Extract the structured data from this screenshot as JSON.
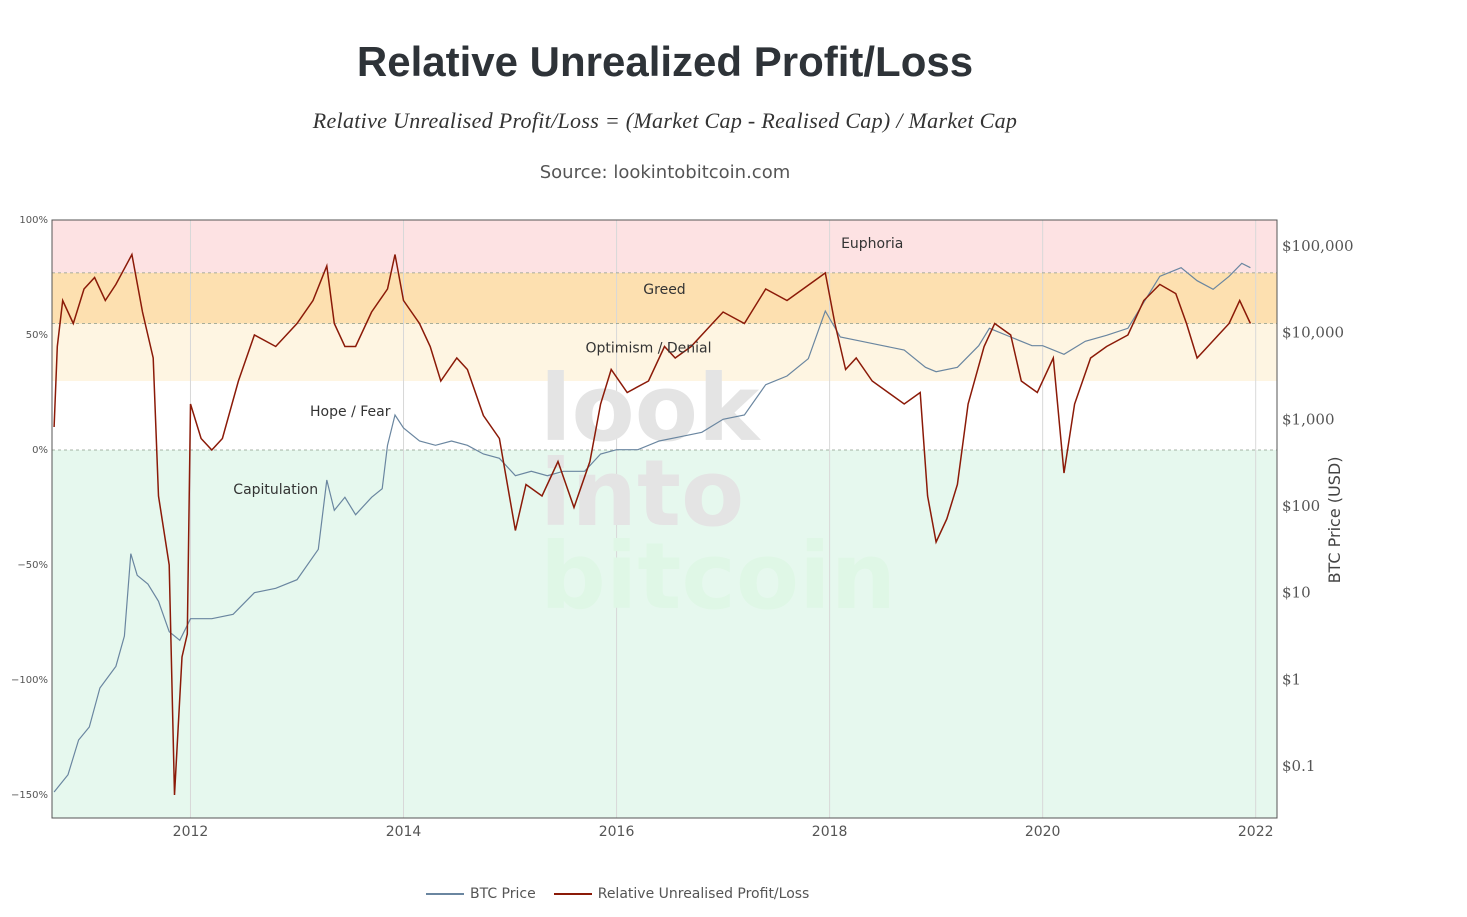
{
  "colors": {
    "btc_line": "#6a86a0",
    "rupl_line": "#8b1a08",
    "euphoria": "#fde2e3",
    "greed": "#fde0b0",
    "optimism": "#fef5e2",
    "capitulation": "#e6f8ee",
    "wm_gray": "#e4e4e4",
    "wm_green": "#dff7e6"
  },
  "chart_data": {
    "type": "line",
    "title": "Relative Unrealized Profit/Loss",
    "subtitle": "Relative Unrealised Profit/Loss = (Market Cap - Realised Cap) / Market Cap",
    "source": "Source: lookintobitcoin.com",
    "x_range": [
      2010.7,
      2022.2
    ],
    "x_ticks": [
      2012,
      2014,
      2016,
      2018,
      2020,
      2022
    ],
    "x_tick_labels": [
      "2012",
      "2014",
      "2016",
      "2018",
      "2020",
      "2022"
    ],
    "left_axis": {
      "range": [
        -160,
        100
      ],
      "ticks": [
        100,
        50,
        0,
        -50,
        -100,
        -150
      ],
      "tick_labels": [
        "100%",
        "50%",
        "0%",
        "−50%",
        "−100%",
        "−150%"
      ]
    },
    "right_axis": {
      "label": "BTC Price (USD)",
      "scale": "log",
      "range_log10": [
        -1.6,
        5.3
      ],
      "ticks_log10": [
        5,
        4,
        3,
        2,
        1,
        0,
        -1
      ],
      "tick_labels": [
        "$100,000",
        "$10,000",
        "$1,000",
        "$100",
        "$10",
        "$1",
        "$0.1"
      ]
    },
    "zones": [
      {
        "name": "Euphoria",
        "from": 77,
        "to": 100
      },
      {
        "name": "Greed",
        "from": 55,
        "to": 77
      },
      {
        "name": "Optimism / Denial",
        "from": 30,
        "to": 55
      },
      {
        "name": "Hope / Fear",
        "from": 0,
        "to": 30
      },
      {
        "name": "Capitulation",
        "from": -160,
        "to": 0
      }
    ],
    "series": [
      {
        "name": "BTC Price",
        "axis": "right",
        "points": [
          [
            2010.72,
            -1.3
          ],
          [
            2010.85,
            -1.1
          ],
          [
            2010.95,
            -0.7
          ],
          [
            2011.05,
            -0.55
          ],
          [
            2011.15,
            -0.1
          ],
          [
            2011.3,
            0.15
          ],
          [
            2011.38,
            0.5
          ],
          [
            2011.44,
            1.45
          ],
          [
            2011.5,
            1.2
          ],
          [
            2011.6,
            1.1
          ],
          [
            2011.7,
            0.9
          ],
          [
            2011.8,
            0.55
          ],
          [
            2011.9,
            0.45
          ],
          [
            2012.0,
            0.7
          ],
          [
            2012.2,
            0.7
          ],
          [
            2012.4,
            0.75
          ],
          [
            2012.6,
            1.0
          ],
          [
            2012.8,
            1.05
          ],
          [
            2013.0,
            1.15
          ],
          [
            2013.2,
            1.5
          ],
          [
            2013.28,
            2.3
          ],
          [
            2013.35,
            1.95
          ],
          [
            2013.45,
            2.1
          ],
          [
            2013.55,
            1.9
          ],
          [
            2013.7,
            2.1
          ],
          [
            2013.8,
            2.2
          ],
          [
            2013.85,
            2.7
          ],
          [
            2013.92,
            3.05
          ],
          [
            2014.0,
            2.9
          ],
          [
            2014.15,
            2.75
          ],
          [
            2014.3,
            2.7
          ],
          [
            2014.45,
            2.75
          ],
          [
            2014.6,
            2.7
          ],
          [
            2014.75,
            2.6
          ],
          [
            2014.9,
            2.55
          ],
          [
            2015.05,
            2.35
          ],
          [
            2015.2,
            2.4
          ],
          [
            2015.35,
            2.35
          ],
          [
            2015.5,
            2.4
          ],
          [
            2015.7,
            2.4
          ],
          [
            2015.85,
            2.6
          ],
          [
            2016.0,
            2.65
          ],
          [
            2016.2,
            2.65
          ],
          [
            2016.4,
            2.75
          ],
          [
            2016.6,
            2.8
          ],
          [
            2016.8,
            2.85
          ],
          [
            2017.0,
            3.0
          ],
          [
            2017.2,
            3.05
          ],
          [
            2017.4,
            3.4
          ],
          [
            2017.6,
            3.5
          ],
          [
            2017.8,
            3.7
          ],
          [
            2017.96,
            4.25
          ],
          [
            2018.1,
            3.95
          ],
          [
            2018.3,
            3.9
          ],
          [
            2018.5,
            3.85
          ],
          [
            2018.7,
            3.8
          ],
          [
            2018.9,
            3.6
          ],
          [
            2019.0,
            3.55
          ],
          [
            2019.2,
            3.6
          ],
          [
            2019.4,
            3.85
          ],
          [
            2019.5,
            4.05
          ],
          [
            2019.7,
            3.95
          ],
          [
            2019.9,
            3.85
          ],
          [
            2020.0,
            3.85
          ],
          [
            2020.2,
            3.75
          ],
          [
            2020.4,
            3.9
          ],
          [
            2020.6,
            3.97
          ],
          [
            2020.8,
            4.05
          ],
          [
            2020.95,
            4.35
          ],
          [
            2021.1,
            4.65
          ],
          [
            2021.3,
            4.75
          ],
          [
            2021.45,
            4.6
          ],
          [
            2021.6,
            4.5
          ],
          [
            2021.75,
            4.65
          ],
          [
            2021.87,
            4.8
          ],
          [
            2021.95,
            4.75
          ]
        ]
      },
      {
        "name": "Relative Unrealised Profit/Loss",
        "axis": "left",
        "points": [
          [
            2010.72,
            10
          ],
          [
            2010.75,
            45
          ],
          [
            2010.8,
            65
          ],
          [
            2010.9,
            55
          ],
          [
            2011.0,
            70
          ],
          [
            2011.1,
            75
          ],
          [
            2011.2,
            65
          ],
          [
            2011.3,
            72
          ],
          [
            2011.45,
            85
          ],
          [
            2011.55,
            60
          ],
          [
            2011.65,
            40
          ],
          [
            2011.7,
            -20
          ],
          [
            2011.8,
            -50
          ],
          [
            2011.85,
            -150
          ],
          [
            2011.92,
            -90
          ],
          [
            2011.97,
            -80
          ],
          [
            2012.0,
            20
          ],
          [
            2012.1,
            5
          ],
          [
            2012.2,
            0
          ],
          [
            2012.3,
            5
          ],
          [
            2012.45,
            30
          ],
          [
            2012.6,
            50
          ],
          [
            2012.8,
            45
          ],
          [
            2013.0,
            55
          ],
          [
            2013.15,
            65
          ],
          [
            2013.28,
            80
          ],
          [
            2013.35,
            55
          ],
          [
            2013.45,
            45
          ],
          [
            2013.55,
            45
          ],
          [
            2013.7,
            60
          ],
          [
            2013.85,
            70
          ],
          [
            2013.92,
            85
          ],
          [
            2014.0,
            65
          ],
          [
            2014.15,
            55
          ],
          [
            2014.25,
            45
          ],
          [
            2014.35,
            30
          ],
          [
            2014.5,
            40
          ],
          [
            2014.6,
            35
          ],
          [
            2014.75,
            15
          ],
          [
            2014.9,
            5
          ],
          [
            2015.05,
            -35
          ],
          [
            2015.15,
            -15
          ],
          [
            2015.3,
            -20
          ],
          [
            2015.45,
            -5
          ],
          [
            2015.6,
            -25
          ],
          [
            2015.75,
            -5
          ],
          [
            2015.85,
            20
          ],
          [
            2015.95,
            35
          ],
          [
            2016.1,
            25
          ],
          [
            2016.3,
            30
          ],
          [
            2016.45,
            45
          ],
          [
            2016.55,
            40
          ],
          [
            2016.7,
            45
          ],
          [
            2016.9,
            55
          ],
          [
            2017.0,
            60
          ],
          [
            2017.2,
            55
          ],
          [
            2017.4,
            70
          ],
          [
            2017.6,
            65
          ],
          [
            2017.75,
            70
          ],
          [
            2017.9,
            75
          ],
          [
            2017.96,
            77
          ],
          [
            2018.05,
            55
          ],
          [
            2018.15,
            35
          ],
          [
            2018.25,
            40
          ],
          [
            2018.4,
            30
          ],
          [
            2018.55,
            25
          ],
          [
            2018.7,
            20
          ],
          [
            2018.85,
            25
          ],
          [
            2018.92,
            -20
          ],
          [
            2019.0,
            -40
          ],
          [
            2019.1,
            -30
          ],
          [
            2019.2,
            -15
          ],
          [
            2019.3,
            20
          ],
          [
            2019.45,
            45
          ],
          [
            2019.55,
            55
          ],
          [
            2019.7,
            50
          ],
          [
            2019.8,
            30
          ],
          [
            2019.95,
            25
          ],
          [
            2020.1,
            40
          ],
          [
            2020.2,
            -10
          ],
          [
            2020.3,
            20
          ],
          [
            2020.45,
            40
          ],
          [
            2020.6,
            45
          ],
          [
            2020.8,
            50
          ],
          [
            2020.95,
            65
          ],
          [
            2021.1,
            72
          ],
          [
            2021.25,
            68
          ],
          [
            2021.35,
            55
          ],
          [
            2021.45,
            40
          ],
          [
            2021.55,
            45
          ],
          [
            2021.65,
            50
          ],
          [
            2021.75,
            55
          ],
          [
            2021.85,
            65
          ],
          [
            2021.95,
            55
          ]
        ]
      }
    ]
  }
}
